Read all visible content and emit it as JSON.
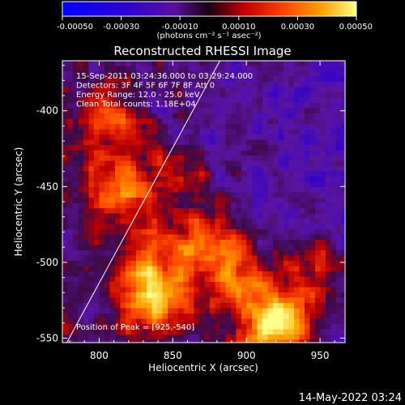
{
  "chart_data": {
    "type": "heatmap",
    "title": "Reconstructed RHESSI Image",
    "xlabel": "Heliocentric X (arcsec)",
    "ylabel": "Heliocentric Y (arcsec)",
    "xlim": [
      775,
      967
    ],
    "ylim": [
      -553,
      -367
    ],
    "x_ticks": [
      800,
      850,
      900,
      950
    ],
    "y_ticks": [
      -400,
      -450,
      -500,
      -550
    ],
    "colorbar": {
      "ticks": [
        "-0.00050",
        "-0.00030",
        "-0.00010",
        "0.00010",
        "0.00030",
        "0.00050"
      ],
      "units": "(photons cm⁻² s⁻¹ asec⁻²)",
      "range": [
        -0.0005,
        0.0005
      ]
    },
    "info_lines": [
      "15-Sep-2011 03:24:36.000 to 03:29:24.000",
      "Detectors: 3F 4F 5F 6F 7F 8F Att 0",
      "Energy Range: 12.0 - 25.0 keV",
      "Clean    Total counts: 1.18E+04"
    ],
    "peak_label": "Position of Peak = [925,-540]",
    "peak": [
      925,
      -540
    ],
    "limb": [
      [
        778,
        -553
      ],
      [
        882,
        -367
      ]
    ],
    "bright_sources": [
      {
        "x": 925,
        "y": -538,
        "peak": 0.00052
      },
      {
        "x": 838,
        "y": -528,
        "peak": 0.00036
      },
      {
        "x": 815,
        "y": -453,
        "peak": 0.00034
      },
      {
        "x": 892,
        "y": -508,
        "peak": 0.00033
      },
      {
        "x": 870,
        "y": -485,
        "peak": 0.0003
      },
      {
        "x": 808,
        "y": -408,
        "peak": 0.00026
      },
      {
        "x": 835,
        "y": -505,
        "peak": 0.0003
      },
      {
        "x": 947,
        "y": -500,
        "peak": 0.00025
      },
      {
        "x": 906,
        "y": -552,
        "peak": 0.00022
      },
      {
        "x": 855,
        "y": -440,
        "peak": 0.00018
      }
    ]
  },
  "footer": {
    "date": "14-May-2022 03:24"
  }
}
